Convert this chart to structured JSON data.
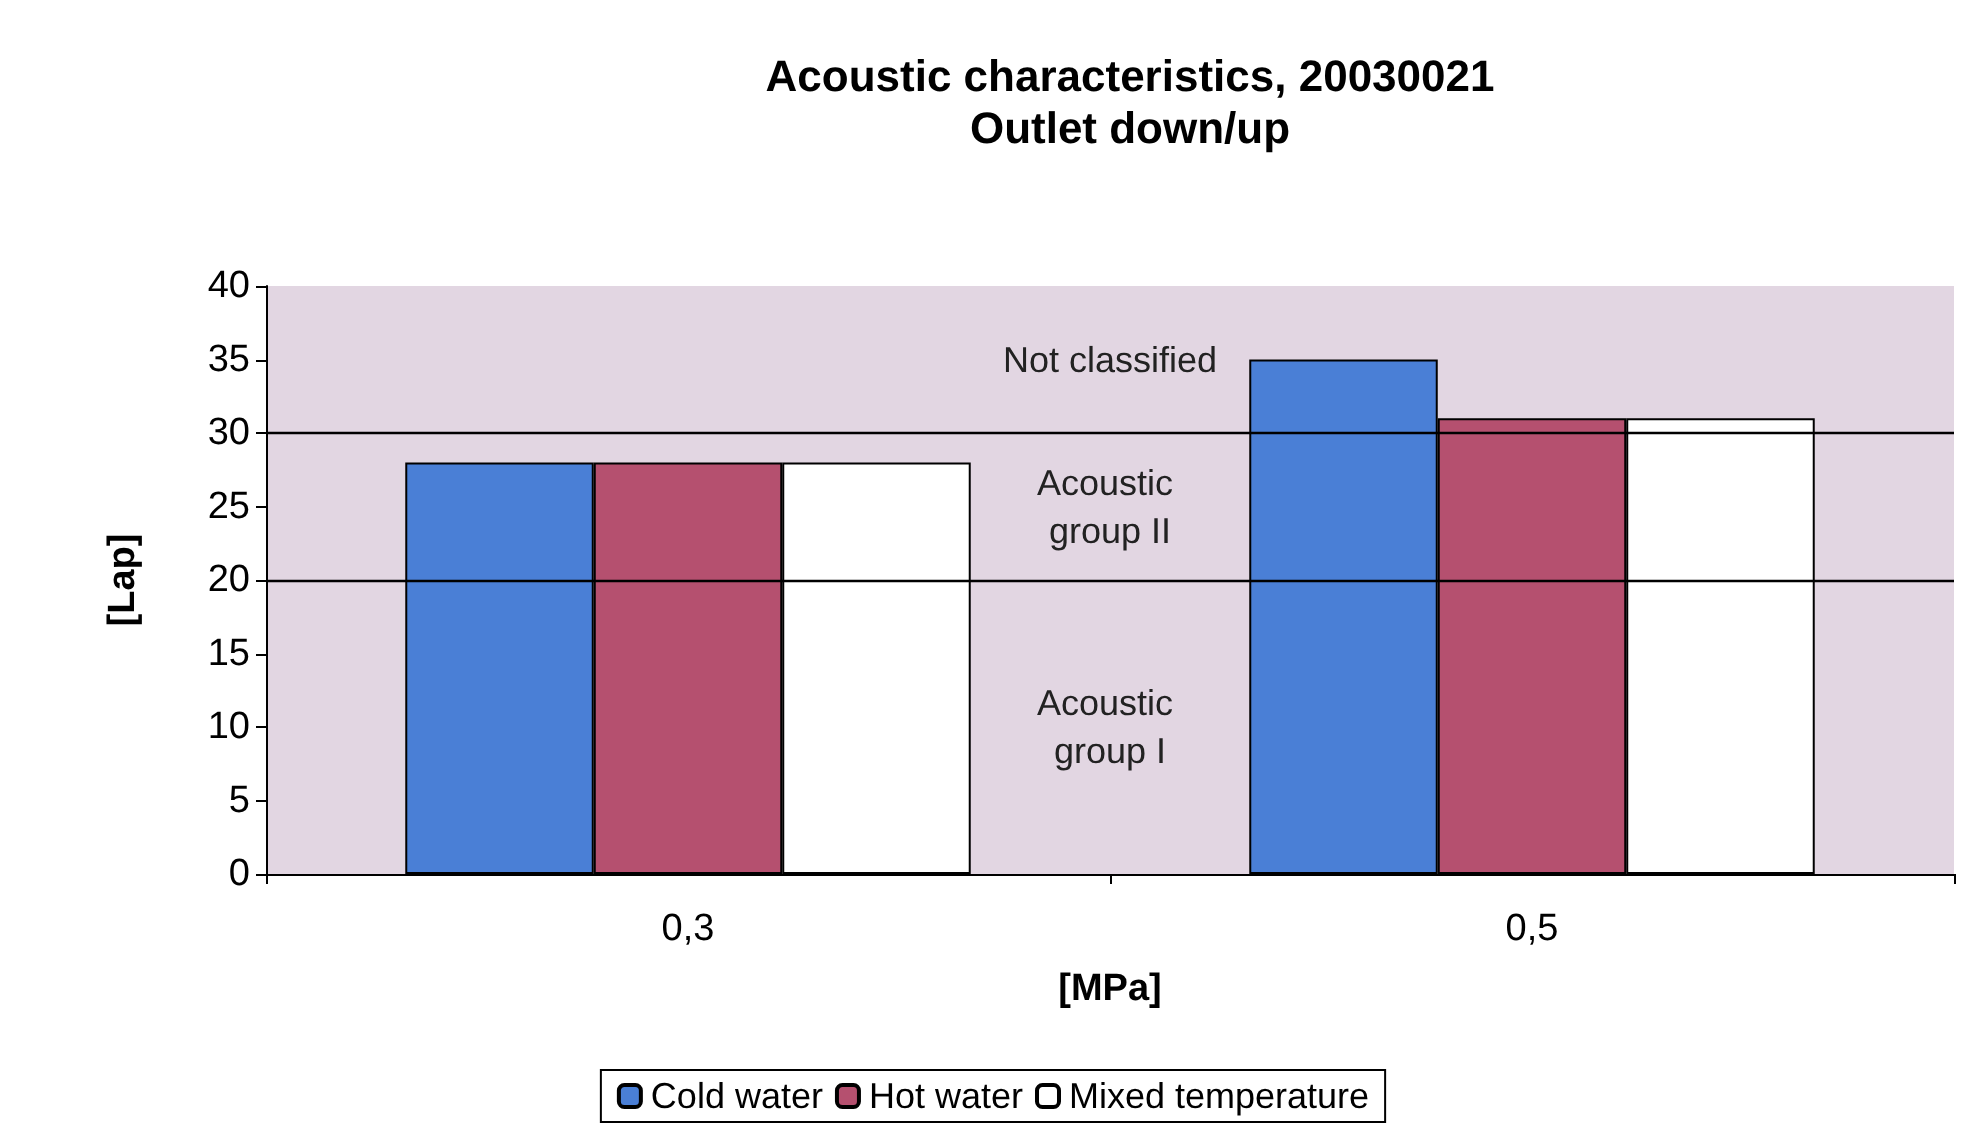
{
  "chart_data": {
    "type": "bar",
    "title": "Acoustic characteristics, 20030021",
    "subtitle": "Outlet down/up",
    "xlabel": "[MPa]",
    "ylabel": "[Lap]",
    "categories": [
      "0,3",
      "0,5"
    ],
    "series": [
      {
        "name": "Cold water",
        "color": "#4a7fd6",
        "values": [
          28,
          35
        ]
      },
      {
        "name": "Hot water",
        "color": "#b5506f",
        "values": [
          28,
          31
        ]
      },
      {
        "name": "Mixed temperature",
        "color": "#ffffff",
        "values": [
          28,
          31
        ]
      }
    ],
    "ylim": [
      0,
      40
    ],
    "yticks": [
      0,
      5,
      10,
      15,
      20,
      25,
      30,
      35,
      40
    ],
    "grid": false,
    "legend": "bottom",
    "ref_lines": [
      {
        "axis": "y",
        "value": 20,
        "label": null
      },
      {
        "axis": "y",
        "value": 30,
        "label": null
      }
    ],
    "annotations": [
      "Not classified",
      "Acoustic group II",
      "Acoustic group I"
    ]
  }
}
